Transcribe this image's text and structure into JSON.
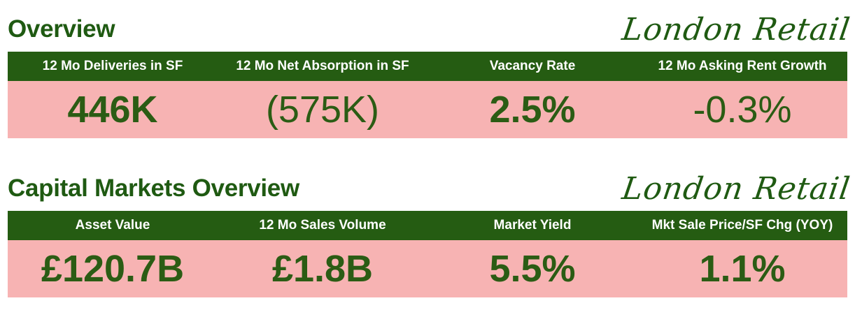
{
  "colors": {
    "header_green": "#255c12",
    "text_green": "#1f5a12",
    "value_pink": "#f7b3b3",
    "label_white": "#ffffff"
  },
  "overview": {
    "title": "Overview",
    "brand": "London Retail",
    "metrics": [
      {
        "label": "12 Mo Deliveries in SF",
        "value": "446K"
      },
      {
        "label": "12 Mo Net Absorption in SF",
        "value": "(575K)"
      },
      {
        "label": "Vacancy Rate",
        "value": "2.5%"
      },
      {
        "label": "12 Mo Asking Rent Growth",
        "value": "-0.3%"
      }
    ]
  },
  "capital_markets": {
    "title": "Capital Markets Overview",
    "brand": "London Retail",
    "metrics": [
      {
        "label": "Asset Value",
        "value": "£120.7B"
      },
      {
        "label": "12 Mo Sales Volume",
        "value": "£1.8B"
      },
      {
        "label": "Market Yield",
        "value": "5.5%"
      },
      {
        "label": "Mkt Sale Price/SF Chg (YOY)",
        "value": "1.1%"
      }
    ]
  }
}
